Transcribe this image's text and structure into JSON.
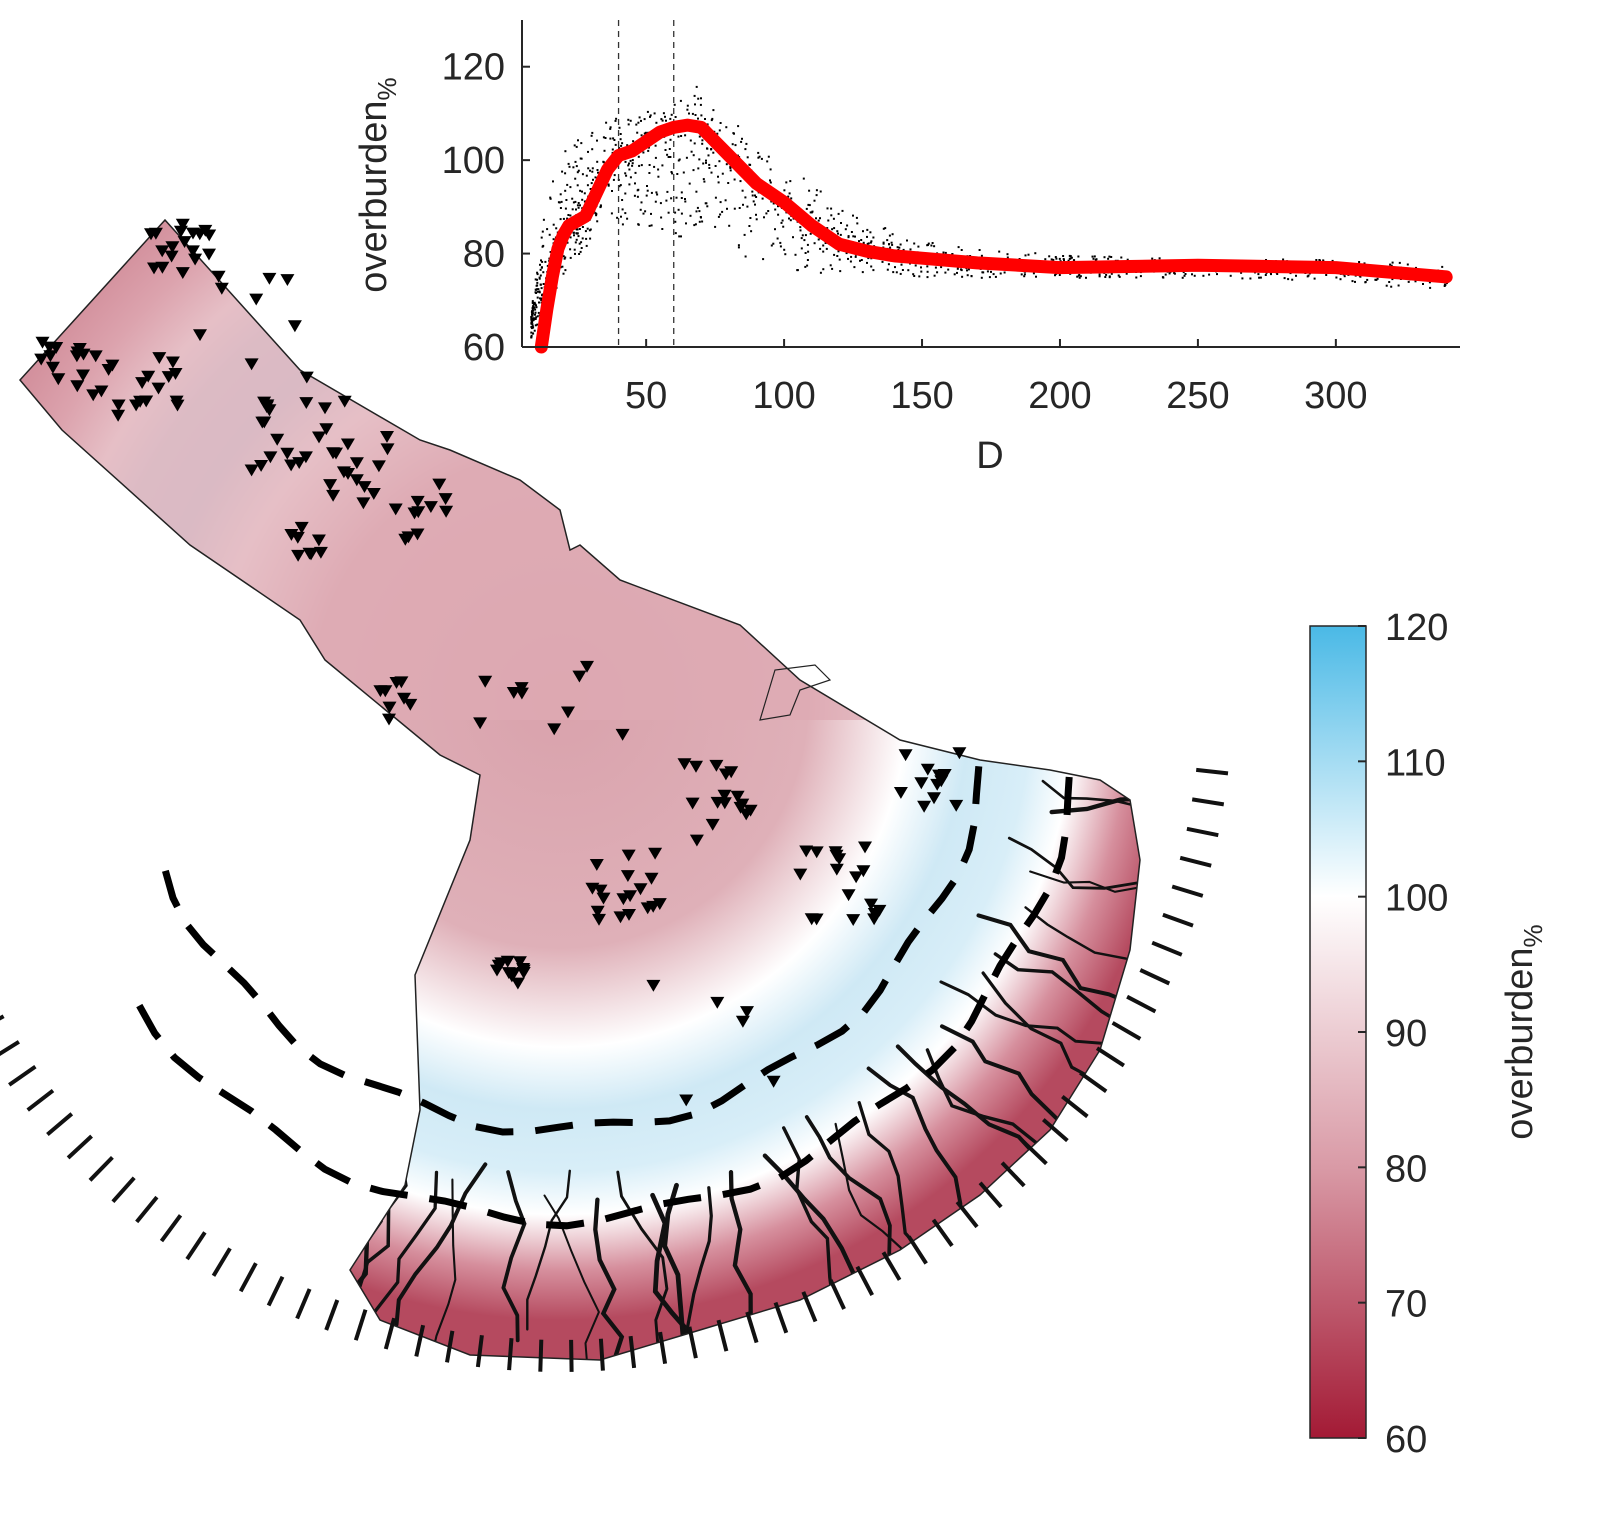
{
  "chart_data": [
    {
      "type": "scatter",
      "xlabel": "D",
      "ylabel": "overburden",
      "ylabel_subscript": "%",
      "xlim": [
        5,
        345
      ],
      "ylim": [
        60,
        130
      ],
      "xticks": [
        50,
        100,
        150,
        200,
        250,
        300
      ],
      "yticks": [
        60,
        80,
        100,
        120
      ],
      "grid": false,
      "vertical_reference_lines": [
        40,
        60
      ],
      "series": [
        {
          "kind": "scatter-points",
          "color": "#000000",
          "band_points": [
            [
              8,
              62,
              66
            ],
            [
              10,
              64,
              74
            ],
            [
              12,
              68,
              86
            ],
            [
              14,
              70,
              92
            ],
            [
              16,
              72,
              96
            ],
            [
              18,
              74,
              99
            ],
            [
              20,
              76,
              102
            ],
            [
              22,
              78,
              104
            ],
            [
              25,
              80,
              106
            ],
            [
              28,
              82,
              108
            ],
            [
              32,
              84,
              109
            ],
            [
              36,
              85,
              110
            ],
            [
              40,
              86,
              111
            ],
            [
              45,
              86,
              111
            ],
            [
              50,
              86,
              111
            ],
            [
              55,
              85,
              111
            ],
            [
              60,
              84,
              111
            ],
            [
              65,
              83,
              110
            ],
            [
              70,
              82,
              110
            ],
            [
              75,
              81,
              109
            ],
            [
              80,
              80,
              107
            ],
            [
              90,
              78,
              103
            ],
            [
              100,
              77,
              99
            ],
            [
              110,
              76,
              95
            ],
            [
              120,
              76,
              90
            ],
            [
              130,
              75,
              87
            ],
            [
              140,
              75,
              85
            ],
            [
              150,
              75,
              83
            ],
            [
              170,
              75,
              81
            ],
            [
              200,
              75,
              80
            ],
            [
              250,
              75,
              79
            ],
            [
              300,
              74,
              79
            ],
            [
              340,
              72,
              78
            ]
          ]
        },
        {
          "kind": "smoothed-line",
          "color": "#ff0000",
          "x": [
            12,
            14,
            16,
            18,
            20,
            22,
            25,
            28,
            32,
            36,
            40,
            45,
            50,
            55,
            60,
            65,
            70,
            75,
            80,
            90,
            100,
            110,
            120,
            130,
            140,
            150,
            170,
            200,
            250,
            300,
            340
          ],
          "y": [
            60,
            68,
            75,
            81,
            84,
            86,
            87,
            88,
            93,
            98,
            101,
            102,
            104,
            106,
            107,
            107.5,
            107,
            104,
            101,
            95,
            91,
            86,
            82,
            80.5,
            79.5,
            79,
            78,
            77,
            77.5,
            77,
            75
          ]
        }
      ]
    },
    {
      "type": "heatmap",
      "colorbar_label": "overburden",
      "colorbar_label_subscript": "%",
      "colorbar_ticks": [
        60,
        70,
        80,
        90,
        100,
        110,
        120
      ],
      "colorbar_range": [
        60,
        120
      ],
      "colormap": [
        {
          "value": 60,
          "color": "#a31a35"
        },
        {
          "value": 80,
          "color": "#d99aa6"
        },
        {
          "value": 100,
          "color": "#ffffff"
        },
        {
          "value": 120,
          "color": "#4ab9e6"
        }
      ],
      "markers": "black downward triangles",
      "lines": "black solid channels and dashed contours"
    }
  ]
}
